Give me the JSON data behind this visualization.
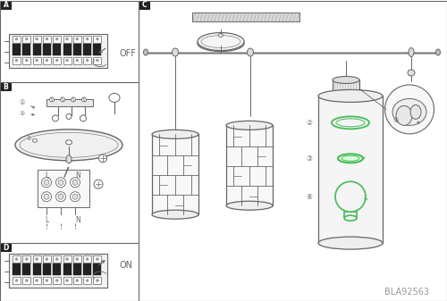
{
  "bg_color": "#ffffff",
  "line_color": "#666666",
  "mid_gray": "#999999",
  "light_gray": "#dddddd",
  "dark_color": "#333333",
  "green_color": "#44bb55",
  "black_color": "#222222",
  "text_OFF": "OFF",
  "text_ON": "ON",
  "text_L": "L",
  "text_N": "N",
  "text_BLA": "BLA92563",
  "fig_width": 5.0,
  "fig_height": 3.37,
  "dpi": 100
}
